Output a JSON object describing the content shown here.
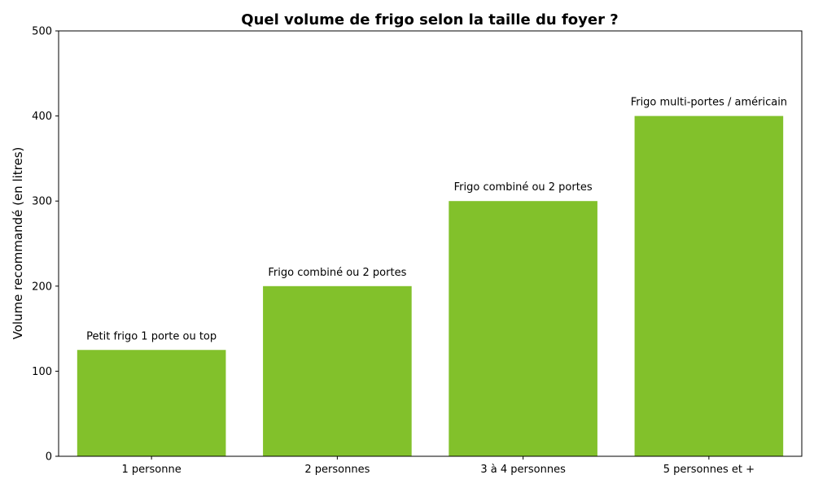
{
  "chart_data": {
    "type": "bar",
    "title": "Quel volume de frigo selon la taille du foyer ?",
    "xlabel": "",
    "ylabel": "Volume recommandé (en litres)",
    "categories": [
      "1 personne",
      "2 personnes",
      "3 à 4 personnes",
      "5 personnes et +"
    ],
    "values": [
      125,
      200,
      300,
      400
    ],
    "bar_labels": [
      "Petit frigo 1 porte ou top",
      "Frigo combiné ou 2 portes",
      "Frigo combiné ou 2 portes",
      "Frigo multi-portes / américain"
    ],
    "ylim": [
      0,
      500
    ],
    "yticks": [
      0,
      100,
      200,
      300,
      400,
      500
    ],
    "grid": false,
    "bar_color": "#82c12b"
  }
}
